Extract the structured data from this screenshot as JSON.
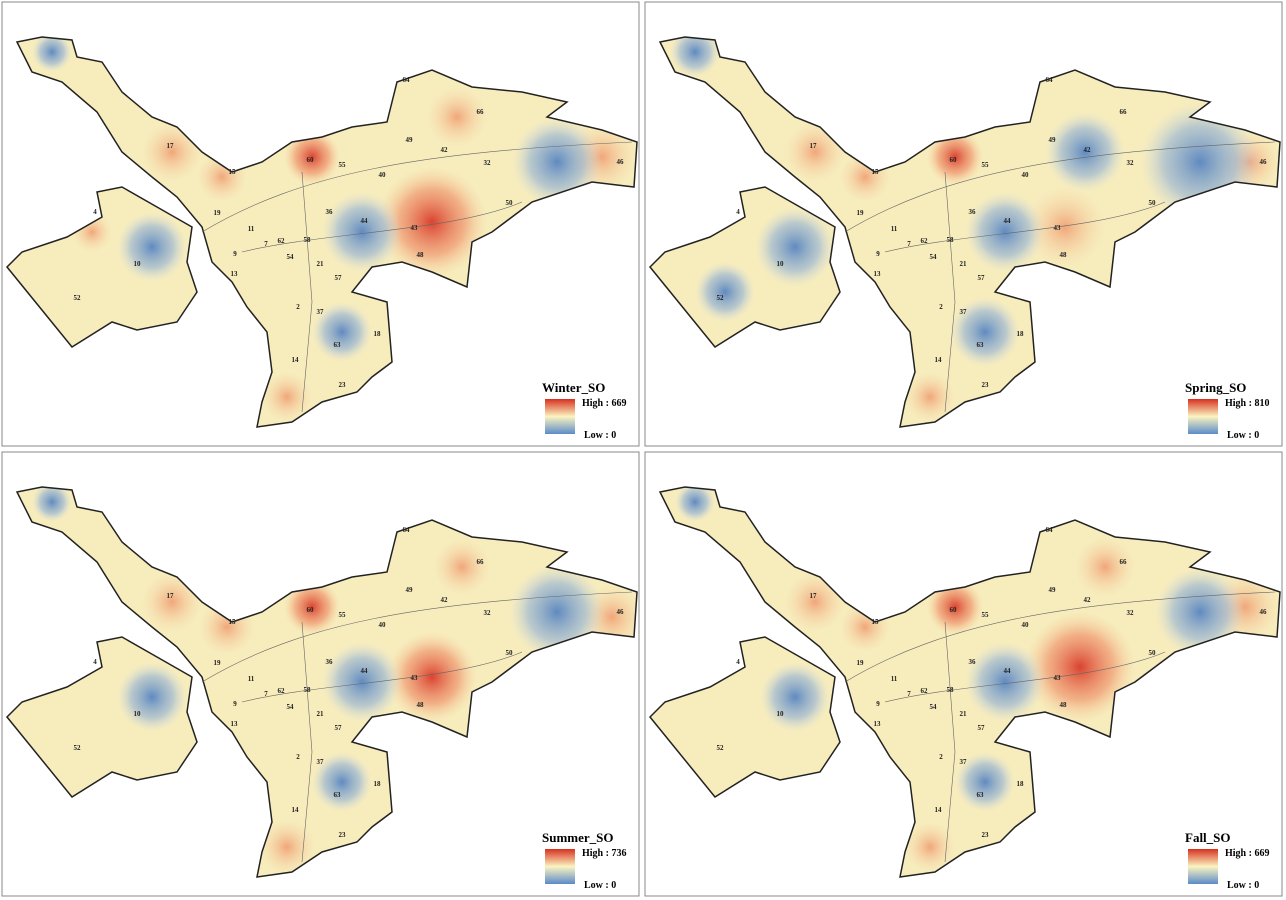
{
  "panels": [
    {
      "legend_title": "Winter_SO",
      "high": "High : 669",
      "low": "Low : 0"
    },
    {
      "legend_title": "Spring_SO",
      "high": "High : 810",
      "low": "Low : 0"
    },
    {
      "legend_title": "Summer_SO",
      "high": "High : 736",
      "low": "Low : 0"
    },
    {
      "legend_title": "Fall_SO",
      "high": "High : 669",
      "low": "Low : 0"
    }
  ],
  "district_labels": [
    "64",
    "66",
    "49",
    "42",
    "32",
    "46",
    "17",
    "15",
    "40",
    "50",
    "19",
    "4",
    "10",
    "52",
    "43",
    "48",
    "13",
    "2",
    "37",
    "18",
    "14",
    "63",
    "23",
    "9",
    "11",
    "36",
    "54",
    "21",
    "57",
    "7",
    "62",
    "58",
    "44",
    "60",
    "55"
  ]
}
